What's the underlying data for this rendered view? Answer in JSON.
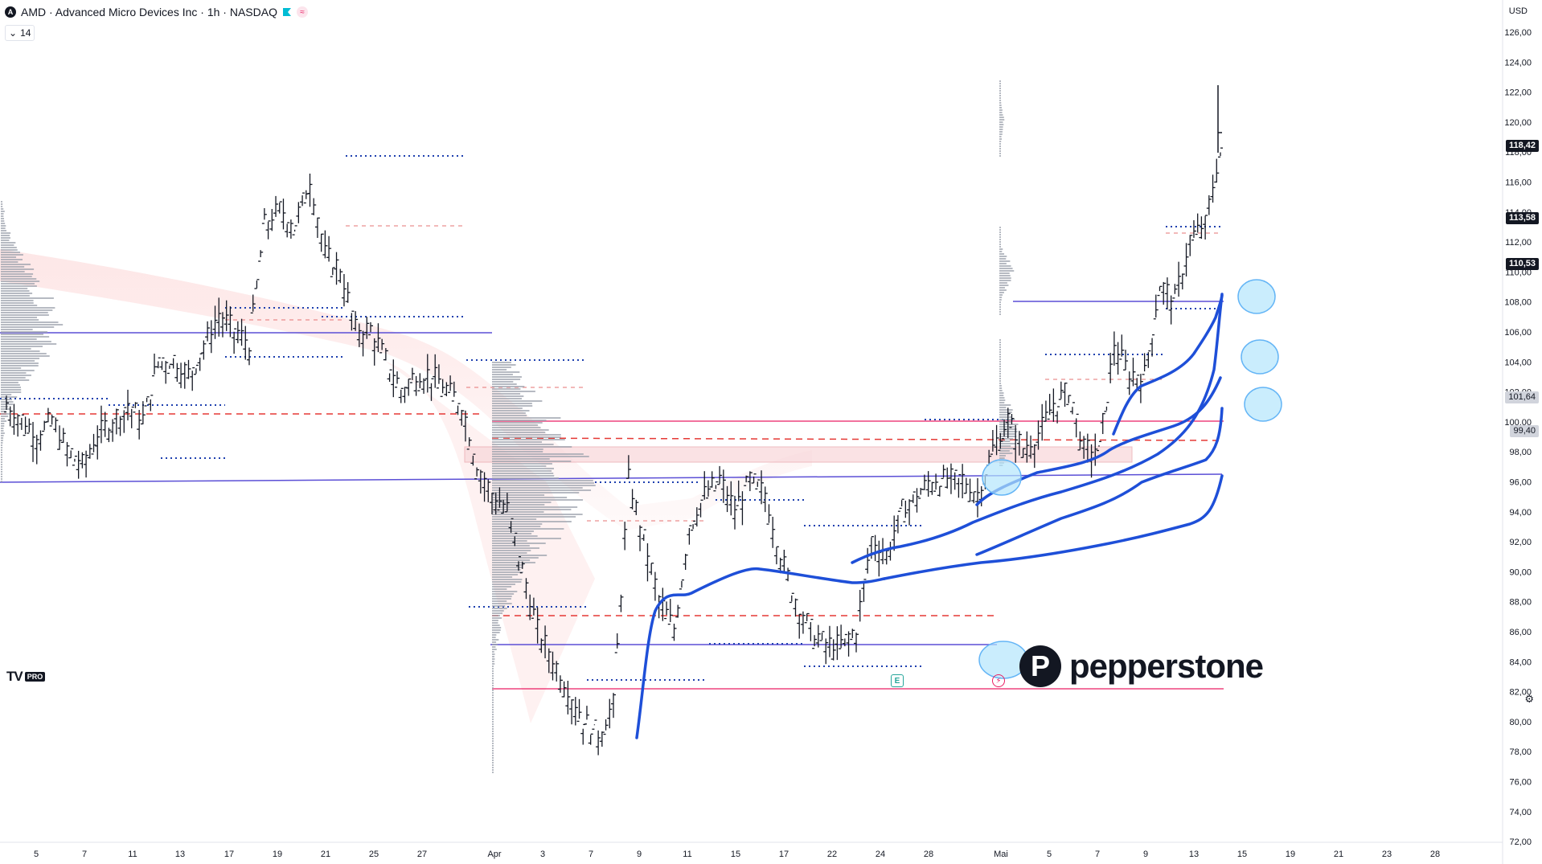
{
  "header": {
    "symbol_line": "AMD · Advanced Micro Devices Inc · 1h · NASDAQ",
    "logo_letter": "A",
    "volume_label": "14"
  },
  "currency": "USD",
  "price_tags": {
    "tag1": "118,42",
    "tag2": "113,58",
    "tag3": "110,53",
    "tag4": "101,64",
    "tag5": "99,40"
  },
  "y_axis": {
    "ticks": [
      "126,00",
      "124,00",
      "122,00",
      "120,00",
      "118,00",
      "116,00",
      "114,00",
      "112,00",
      "110,00",
      "108,00",
      "106,00",
      "104,00",
      "102,00",
      "100,00",
      "98,00",
      "96,00",
      "94,00",
      "92,00",
      "90,00",
      "88,00",
      "86,00",
      "84,00",
      "82,00",
      "80,00",
      "78,00",
      "76,00",
      "74,00",
      "72,00"
    ]
  },
  "x_axis": {
    "labels": [
      "5",
      "7",
      "11",
      "13",
      "17",
      "19",
      "21",
      "25",
      "27",
      "Apr",
      "3",
      "7",
      "9",
      "11",
      "15",
      "17",
      "22",
      "24",
      "28",
      "Mai",
      "5",
      "7",
      "9",
      "13",
      "15",
      "19",
      "21",
      "23",
      "28"
    ]
  },
  "watermark": {
    "tv": "TV",
    "pro": "PRO"
  },
  "brand": {
    "mark": "P",
    "name": "pepperstone"
  },
  "events": {
    "earnings": "E",
    "bolt": "⚡"
  },
  "colors": {
    "bar": "#131722",
    "blue_line": "#1e4fd8",
    "purple_line": "#5b4fd6",
    "red_line": "#e53935",
    "pink_line": "#e91e63",
    "dot_blue": "#1e40af",
    "circle_fill": "#b3e5fc",
    "profile": "#9ea3ad",
    "band": "#f8c8c8"
  },
  "settings_icon": "gear-icon",
  "chart_data": {
    "type": "ohlc",
    "symbol": "AMD",
    "interval": "1h",
    "y_range": [
      72,
      127
    ],
    "price_closes": [
      101,
      100,
      99,
      100,
      98,
      97,
      99,
      100,
      101,
      100,
      104,
      104,
      103,
      105,
      107,
      106,
      105,
      113,
      114,
      113,
      116,
      111,
      110,
      106,
      106,
      104,
      102,
      103,
      103,
      102,
      101,
      97,
      95,
      94,
      90,
      86,
      84,
      82,
      80,
      79,
      81,
      96,
      92,
      88,
      86,
      93,
      95,
      96,
      94,
      96,
      95,
      91,
      88,
      86,
      85,
      85,
      86,
      92,
      91,
      94,
      95,
      96,
      96,
      96,
      95,
      98,
      100,
      98,
      99,
      101,
      102,
      98,
      98,
      105,
      103,
      103,
      109,
      108,
      112,
      113,
      118
    ]
  }
}
